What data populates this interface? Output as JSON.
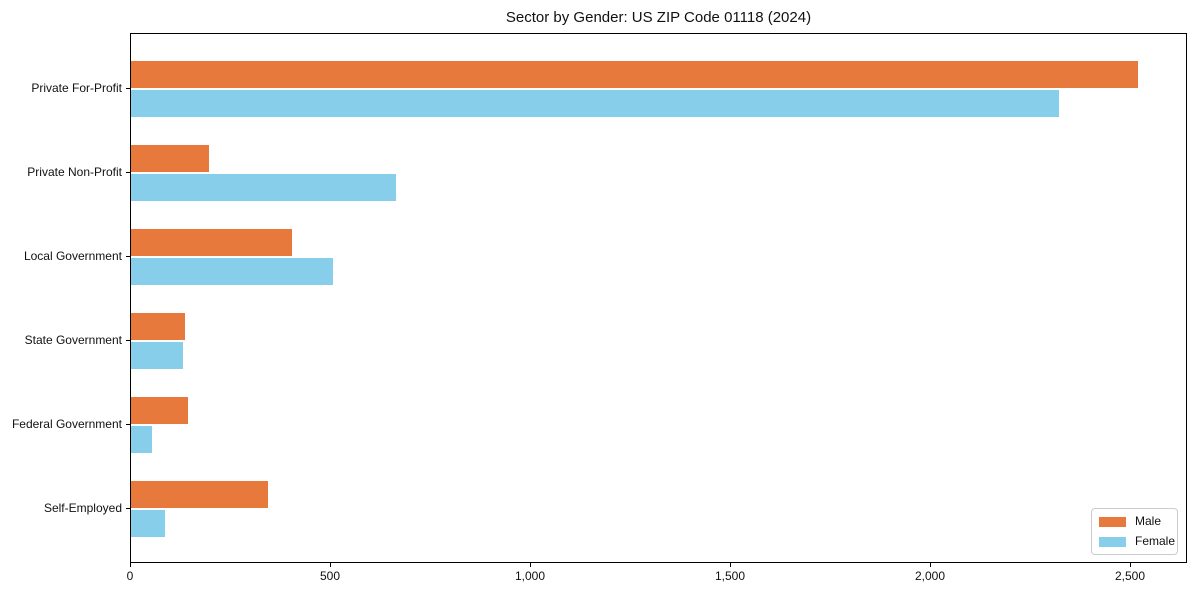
{
  "chart_data": {
    "type": "bar",
    "orientation": "horizontal",
    "title": "Sector by Gender: US ZIP Code 01118 (2024)",
    "categories": [
      "Private For-Profit",
      "Private Non-Profit",
      "Local Government",
      "State Government",
      "Federal Government",
      "Self-Employed"
    ],
    "series": [
      {
        "name": "Male",
        "color": "#e8793d",
        "values": [
          2517,
          194,
          402,
          136,
          143,
          342
        ]
      },
      {
        "name": "Female",
        "color": "#87ceeb",
        "values": [
          2321,
          662,
          506,
          131,
          52,
          84
        ]
      }
    ],
    "xlabel": "",
    "ylabel": "",
    "xlim": [
      0,
      2643
    ],
    "xticks": {
      "values": [
        0,
        500,
        1000,
        1500,
        2000,
        2500
      ],
      "labels": [
        "0",
        "500",
        "1,000",
        "1,500",
        "2,000",
        "2,500"
      ]
    },
    "grid": false,
    "legend": {
      "position": "lower right",
      "entries": [
        "Male",
        "Female"
      ]
    },
    "colors": {
      "male": "#e8793d",
      "female": "#87ceeb",
      "spine": "#000000",
      "text": "#111111",
      "legend_border": "#cccccc"
    }
  }
}
